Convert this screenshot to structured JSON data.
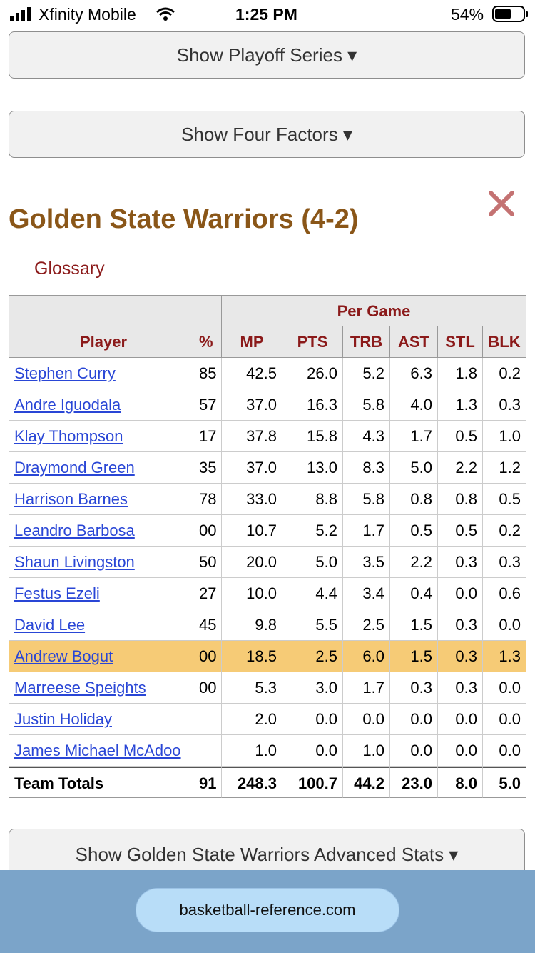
{
  "status_bar": {
    "carrier": "Xfinity Mobile",
    "time": "1:25 PM",
    "battery": "54%"
  },
  "buttons": [
    "Show Playoff Series ▾",
    "Show Four Factors ▾",
    "Show Golden State Warriors Advanced Stats ▾"
  ],
  "section": {
    "title": "Golden State Warriors (4-2)",
    "glossary": "Glossary"
  },
  "table": {
    "group_header": "Per Game",
    "columns": [
      "Player",
      "%",
      "MP",
      "PTS",
      "TRB",
      "AST",
      "STL",
      "BLK"
    ],
    "highlighted_row": 9,
    "rows": [
      [
        "Stephen Curry",
        "85",
        "42.5",
        "26.0",
        "5.2",
        "6.3",
        "1.8",
        "0.2"
      ],
      [
        "Andre Iguodala",
        "57",
        "37.0",
        "16.3",
        "5.8",
        "4.0",
        "1.3",
        "0.3"
      ],
      [
        "Klay Thompson",
        "17",
        "37.8",
        "15.8",
        "4.3",
        "1.7",
        "0.5",
        "1.0"
      ],
      [
        "Draymond Green",
        "35",
        "37.0",
        "13.0",
        "8.3",
        "5.0",
        "2.2",
        "1.2"
      ],
      [
        "Harrison Barnes",
        "78",
        "33.0",
        "8.8",
        "5.8",
        "0.8",
        "0.8",
        "0.5"
      ],
      [
        "Leandro Barbosa",
        "00",
        "10.7",
        "5.2",
        "1.7",
        "0.5",
        "0.5",
        "0.2"
      ],
      [
        "Shaun Livingston",
        "50",
        "20.0",
        "5.0",
        "3.5",
        "2.2",
        "0.3",
        "0.3"
      ],
      [
        "Festus Ezeli",
        "27",
        "10.0",
        "4.4",
        "3.4",
        "0.4",
        "0.0",
        "0.6"
      ],
      [
        "David Lee",
        "45",
        "9.8",
        "5.5",
        "2.5",
        "1.5",
        "0.3",
        "0.0"
      ],
      [
        "Andrew Bogut",
        "00",
        "18.5",
        "2.5",
        "6.0",
        "1.5",
        "0.3",
        "1.3"
      ],
      [
        "Marreese Speights",
        "00",
        "5.3",
        "3.0",
        "1.7",
        "0.3",
        "0.3",
        "0.0"
      ],
      [
        "Justin Holiday",
        null,
        "2.0",
        "0.0",
        "0.0",
        "0.0",
        "0.0",
        "0.0"
      ],
      [
        "James Michael McAdoo",
        null,
        "1.0",
        "0.0",
        "1.0",
        "0.0",
        "0.0",
        "0.0"
      ]
    ],
    "totals": [
      "Team Totals",
      "91",
      "248.3",
      "100.7",
      "44.2",
      "23.0",
      "8.0",
      "5.0"
    ]
  },
  "footer": {
    "url": "basketball-reference.com"
  }
}
